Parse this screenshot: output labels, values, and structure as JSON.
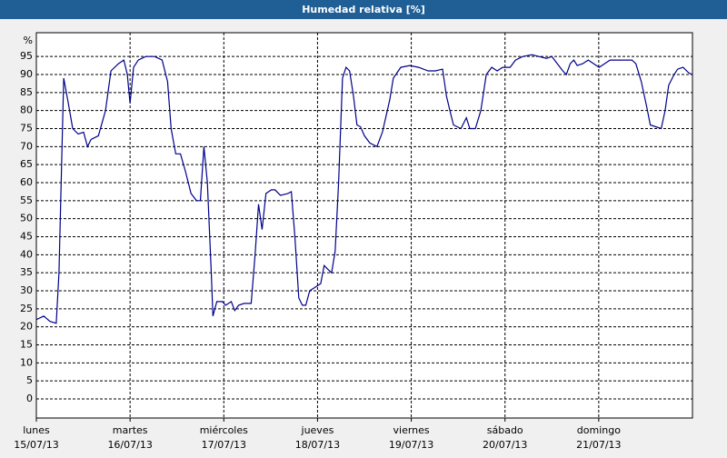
{
  "chart_data": {
    "type": "line",
    "title": "Humedad relativa [%]",
    "ylabel": "%",
    "x": [
      0,
      1.9,
      3.5,
      5.1,
      5.8,
      7.0,
      8.2,
      9.3,
      10.7,
      12.1,
      13.1,
      14.0,
      15.9,
      17.7,
      19.1,
      21.0,
      22.4,
      23.3,
      24.0,
      24.9,
      26.1,
      28.0,
      30.3,
      32.2,
      33.6,
      34.5,
      35.7,
      36.9,
      38.2,
      39.6,
      41.0,
      42.0,
      42.9,
      43.8,
      44.8,
      45.2,
      46.2,
      47.6,
      48.5,
      49.9,
      50.8,
      51.8,
      53.2,
      55.0,
      56.0,
      56.9,
      57.8,
      58.8,
      60.2,
      61.1,
      62.5,
      64.4,
      65.3,
      66.2,
      67.2,
      68.1,
      69.0,
      70.0,
      71.4,
      72.8,
      73.7,
      74.6,
      75.6,
      76.5,
      77.4,
      78.4,
      79.3,
      80.2,
      81.2,
      82.1,
      83.0,
      84.0,
      85.4,
      87.2,
      88.6,
      90.5,
      91.4,
      93.3,
      95.6,
      97.9,
      100.3,
      102.2,
      104.0,
      105.0,
      105.9,
      106.8,
      108.7,
      110.1,
      111.0,
      112.4,
      113.8,
      115.2,
      116.6,
      118.0,
      119.4,
      121.3,
      122.7,
      124.5,
      126.9,
      128.7,
      130.6,
      132.0,
      133.4,
      134.8,
      135.7,
      136.7,
      137.6,
      138.5,
      139.9,
      141.3,
      142.7,
      144.1,
      145.5,
      146.9,
      148.3,
      150.2,
      152.5,
      153.5,
      154.9,
      156.3,
      157.2,
      158.6,
      160.0,
      161.0,
      161.9,
      163.3,
      164.2,
      165.6,
      167.0,
      167.9
    ],
    "series": [
      {
        "name": "Humedad relativa",
        "color": "#00008b",
        "values": [
          22,
          23,
          21.5,
          21,
          35,
          89,
          82,
          75,
          73.5,
          74,
          70,
          72,
          73,
          80,
          91,
          93,
          94,
          90,
          82,
          92,
          94,
          95,
          95,
          94,
          88,
          75,
          68,
          68,
          63,
          57,
          55,
          55,
          70,
          60,
          35,
          23,
          27,
          27,
          26,
          27,
          24.5,
          26,
          26.5,
          26.5,
          40,
          54,
          47,
          57,
          58,
          58,
          56.5,
          57,
          57.5,
          45,
          28,
          26,
          26,
          30,
          31,
          32,
          37,
          36,
          35,
          41,
          60,
          89,
          92,
          91,
          84,
          76,
          75.5,
          73,
          71,
          70,
          74,
          83,
          89,
          92,
          92.5,
          92,
          91,
          91,
          91.5,
          84,
          80,
          76,
          75,
          78,
          75,
          75,
          80,
          90,
          92,
          91,
          92,
          92,
          94,
          95,
          95.5,
          95,
          94.5,
          95,
          93,
          91,
          90,
          93,
          94,
          92.5,
          93,
          94,
          93,
          92,
          93,
          94,
          94,
          94,
          94,
          93,
          88,
          81,
          76,
          75.5,
          75,
          80,
          87,
          90,
          91.5,
          92,
          90.5,
          90
        ]
      }
    ],
    "xlim": [
      0,
      168
    ],
    "xticks": [
      {
        "value": 0,
        "label": "lunes"
      },
      {
        "value": 24,
        "label": "martes"
      },
      {
        "value": 48,
        "label": "miércoles"
      },
      {
        "value": 72,
        "label": "jueves"
      },
      {
        "value": 96,
        "label": "viernes"
      },
      {
        "value": 120,
        "label": "sábado"
      },
      {
        "value": 144,
        "label": "domingo"
      }
    ],
    "xtick_dates": [
      "15/07/13",
      "16/07/13",
      "17/07/13",
      "18/07/13",
      "19/07/13",
      "20/07/13",
      "21/07/13"
    ],
    "ylim": [
      -5.3,
      101.6
    ],
    "yticks": [
      0,
      5,
      10,
      15,
      20,
      25,
      30,
      35,
      40,
      45,
      50,
      55,
      60,
      65,
      70,
      75,
      80,
      85,
      90,
      95
    ],
    "grid": true
  }
}
